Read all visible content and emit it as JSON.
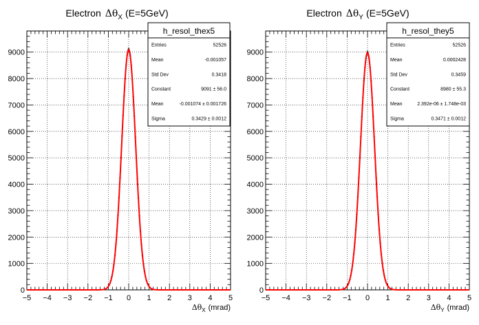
{
  "chart_data": [
    {
      "type": "histogram",
      "title": {
        "prefix": "Electron",
        "symbol": "Δθ",
        "sub": "X",
        "suffix": "(E=5GeV)"
      },
      "xlabel": {
        "symbol": "Δθ",
        "sub": "X",
        "unit": "(mrad)"
      },
      "ylabel": "",
      "xlim": [
        -5,
        5
      ],
      "ylim": [
        0,
        9800
      ],
      "xticks": [
        "−5",
        "−4",
        "−3",
        "−2",
        "−1",
        "0",
        "1",
        "2",
        "3",
        "4",
        "5"
      ],
      "yticks": [
        "0",
        "1000",
        "2000",
        "3000",
        "4000",
        "5000",
        "6000",
        "7000",
        "8000",
        "9000"
      ],
      "grid": true,
      "fit": {
        "function": "gaus",
        "constant": 9091,
        "mean": -0.001074,
        "sigma": 0.3429,
        "color": "#ff0000"
      },
      "stats": {
        "name": "h_resol_thex5",
        "rows": [
          {
            "label": "Entries",
            "value": "52526"
          },
          {
            "label": "Mean",
            "value": "-0.001057"
          },
          {
            "label": "Std Dev",
            "value": "0.3418"
          },
          {
            "label": "Constant",
            "value": "9091 ± 56.0"
          },
          {
            "label": "Mean",
            "value": "-0.001074 ± 0.001726"
          },
          {
            "label": "Sigma",
            "value": "0.3429 ± 0.0012"
          }
        ]
      }
    },
    {
      "type": "histogram",
      "title": {
        "prefix": "Electron",
        "symbol": "Δθ",
        "sub": "Y",
        "suffix": "(E=5GeV)"
      },
      "xlabel": {
        "symbol": "Δθ",
        "sub": "Y",
        "unit": "(mrad)"
      },
      "ylabel": "",
      "xlim": [
        -5,
        5
      ],
      "ylim": [
        0,
        9800
      ],
      "xticks": [
        "−5",
        "−4",
        "−3",
        "−2",
        "−1",
        "0",
        "1",
        "2",
        "3",
        "4",
        "5"
      ],
      "yticks": [
        "0",
        "1000",
        "2000",
        "3000",
        "4000",
        "5000",
        "6000",
        "7000",
        "8000",
        "9000"
      ],
      "grid": true,
      "fit": {
        "function": "gaus",
        "constant": 8980,
        "mean": 2.392e-06,
        "sigma": 0.3471,
        "color": "#ff0000"
      },
      "stats": {
        "name": "h_resol_they5",
        "rows": [
          {
            "label": "Entries",
            "value": "52526"
          },
          {
            "label": "Mean",
            "value": "0.0002428"
          },
          {
            "label": "Std Dev",
            "value": "0.3459"
          },
          {
            "label": "Constant",
            "value": "8980 ± 55.3"
          },
          {
            "label": "Mean",
            "value": "2.392e-06 ± 1.748e-03"
          },
          {
            "label": "Sigma",
            "value": "0.3471 ± 0.0012"
          }
        ]
      }
    }
  ]
}
